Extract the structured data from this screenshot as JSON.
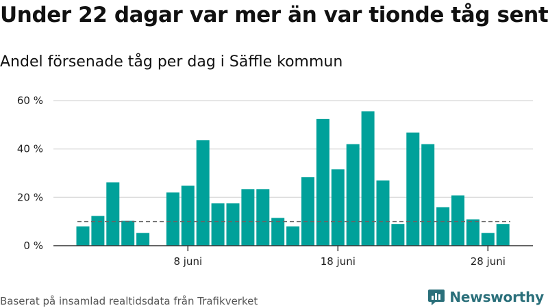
{
  "title": "Under 22 dagar var mer än var tionde tåg sent",
  "subtitle": "Andel försenade tåg per dag i Säffle kommun",
  "source": "Baserat på insamlad realtidsdata från Trafikverket",
  "brand": {
    "name": "Newsworthy",
    "icon": "newsworthy-logo-icon",
    "color": "#2a6f7a"
  },
  "colors": {
    "bar": "#00a19a",
    "reference_line": "#666666",
    "grid": "#dddddd",
    "axis": "#333333"
  },
  "chart_data": {
    "type": "bar",
    "title": "Under 22 dagar var mer än var tionde tåg sent",
    "subtitle": "Andel försenade tåg per dag i Säffle kommun",
    "xlabel": "",
    "ylabel": "",
    "categories": [
      "1 juni",
      "2 juni",
      "3 juni",
      "4 juni",
      "5 juni",
      "6 juni",
      "7 juni",
      "8 juni",
      "9 juni",
      "10 juni",
      "11 juni",
      "12 juni",
      "13 juni",
      "14 juni",
      "15 juni",
      "16 juni",
      "17 juni",
      "18 juni",
      "19 juni",
      "20 juni",
      "21 juni",
      "22 juni",
      "23 juni",
      "24 juni",
      "25 juni",
      "26 juni",
      "27 juni",
      "28 juni",
      "29 juni",
      "30 juni"
    ],
    "values": [
      8,
      12.3,
      26.2,
      10.3,
      5.3,
      0,
      22,
      24.8,
      43.6,
      17.5,
      17.5,
      23.4,
      23.4,
      11.5,
      8,
      28.3,
      52.4,
      31.6,
      42,
      55.6,
      27,
      9,
      46.8,
      42,
      15.9,
      20.8,
      10.9,
      5.3,
      9,
      null
    ],
    "reference_line": 10,
    "x_ticks": [
      "8 juni",
      "18 juni",
      "28 juni"
    ],
    "y_ticks": [
      "0 %",
      "20 %",
      "40 %",
      "60 %"
    ],
    "y_tick_values": [
      0,
      20,
      40,
      60
    ],
    "ylim": [
      0,
      60
    ],
    "grid": true,
    "legend": "none"
  }
}
